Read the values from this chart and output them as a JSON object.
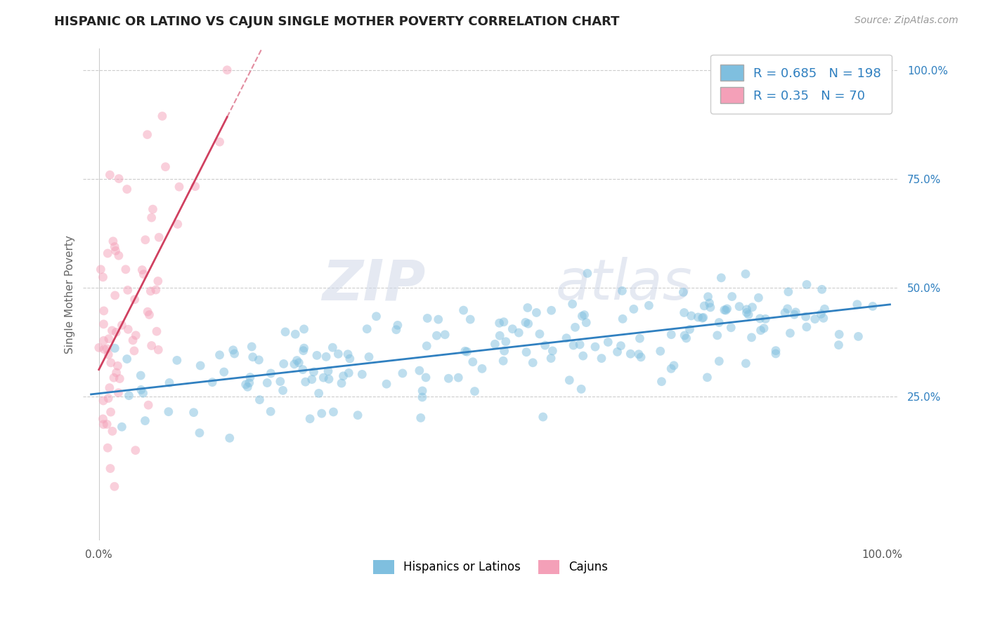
{
  "title": "HISPANIC OR LATINO VS CAJUN SINGLE MOTHER POVERTY CORRELATION CHART",
  "source": "Source: ZipAtlas.com",
  "ylabel": "Single Mother Poverty",
  "watermark_zip": "ZIP",
  "watermark_atlas": "atlas",
  "blue_R": 0.685,
  "blue_N": 198,
  "pink_R": 0.35,
  "pink_N": 70,
  "blue_color": "#7fbfdf",
  "pink_color": "#f4a0b8",
  "blue_line_color": "#3080c0",
  "pink_line_color": "#d04060",
  "blue_label": "Hispanics or Latinos",
  "pink_label": "Cajuns",
  "xlim": [
    0.0,
    1.0
  ],
  "ylim": [
    -0.08,
    1.05
  ],
  "y_ticks": [
    0.25,
    0.5,
    0.75,
    1.0
  ],
  "y_tick_labels": [
    "25.0%",
    "50.0%",
    "75.0%",
    "100.0%"
  ],
  "background_color": "#ffffff",
  "grid_color": "#cccccc",
  "title_fontsize": 13,
  "source_fontsize": 10
}
